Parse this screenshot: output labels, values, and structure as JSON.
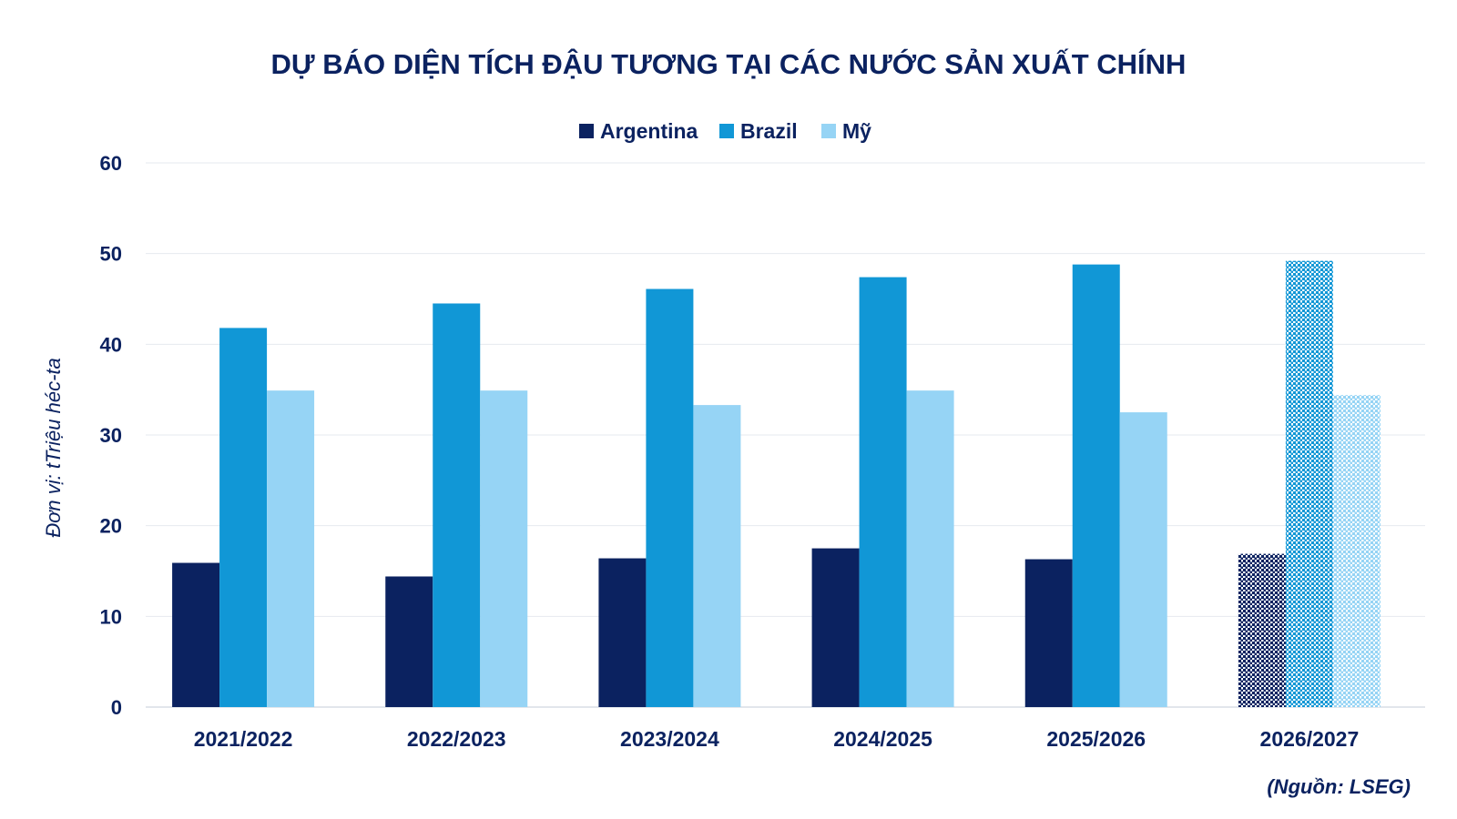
{
  "chart_data": {
    "type": "bar",
    "title": "DỰ BÁO DIỆN TÍCH ĐẬU TƯƠNG TẠI CÁC NƯỚC SẢN XUẤT CHÍNH",
    "ylabel": "Đơn vị: tTriệu héc-ta",
    "xlabel": "",
    "source": "(Nguồn: LSEG)",
    "categories": [
      "2021/2022",
      "2022/2023",
      "2023/2024",
      "2024/2025",
      "2025/2026",
      "2026/2027"
    ],
    "ylim": [
      0,
      60
    ],
    "yticks": [
      0,
      10,
      20,
      30,
      40,
      50,
      60
    ],
    "grid": true,
    "legend_position": "top",
    "forecast_categories": [
      "2026/2027"
    ],
    "series": [
      {
        "name": "Argentina",
        "color": "#0b2260",
        "values": [
          15.9,
          14.4,
          16.4,
          17.5,
          16.3,
          16.9
        ]
      },
      {
        "name": "Brazil",
        "color": "#1197d6",
        "values": [
          41.8,
          44.5,
          46.1,
          47.4,
          48.8,
          49.2
        ]
      },
      {
        "name": "Mỹ",
        "color": "#96d4f5",
        "values": [
          34.9,
          34.9,
          33.3,
          34.9,
          32.5,
          34.4
        ]
      }
    ]
  }
}
